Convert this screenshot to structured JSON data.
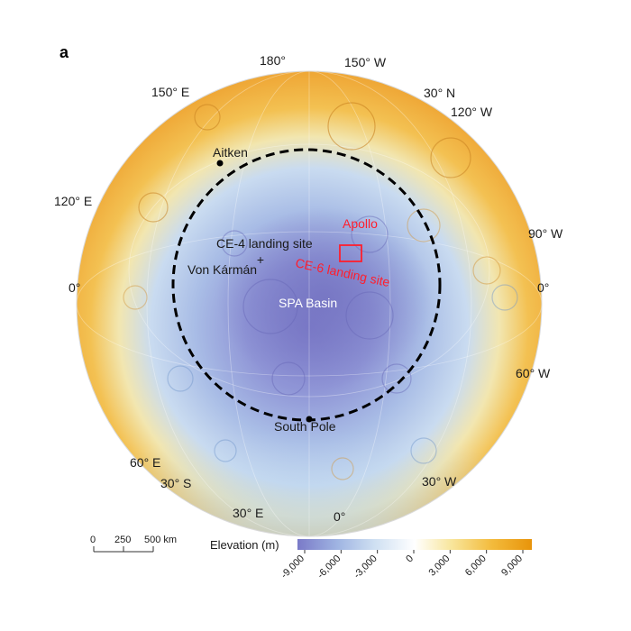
{
  "panel_label": "a",
  "coord_labels": {
    "lon_180": "180°",
    "lon_150w": "150° W",
    "lon_150e": "150° E",
    "lat_30n": "30° N",
    "lon_120w": "120° W",
    "lon_120e": "120° E",
    "lon_90w": "90° W",
    "zero_left": "0°",
    "zero_right": "0°",
    "lon_60w": "60° W",
    "lon_60e": "60° E",
    "lat_30s": "30° S",
    "lon_30w": "30° W",
    "lon_30e": "30° E",
    "zero_bottom": "0°"
  },
  "features": {
    "aitken": "Aitken",
    "ce4": "CE-4 landing site",
    "von_karman": "Von Kármán",
    "spa": "SPA Basin",
    "apollo": "Apollo",
    "ce6": "CE-6 landing site",
    "south_pole": "South Pole"
  },
  "scale_bar": {
    "ticks": [
      "0",
      "250",
      "500 km"
    ]
  },
  "legend": {
    "title": "Elevation (m)",
    "ticks": [
      "-9,000",
      "-6,000",
      "-3,000",
      "0",
      "3,000",
      "6,000",
      "9,000"
    ],
    "colors": [
      "#7a7ac8",
      "#9fb4e2",
      "#cfe0f2",
      "#ffffff",
      "#f8e59a",
      "#f3bb3c",
      "#e8940a"
    ]
  },
  "colors": {
    "ring": "#000000",
    "landing_box": "#ff1e2d",
    "highland": "#f0a840",
    "basin": "#8a8ad0"
  }
}
